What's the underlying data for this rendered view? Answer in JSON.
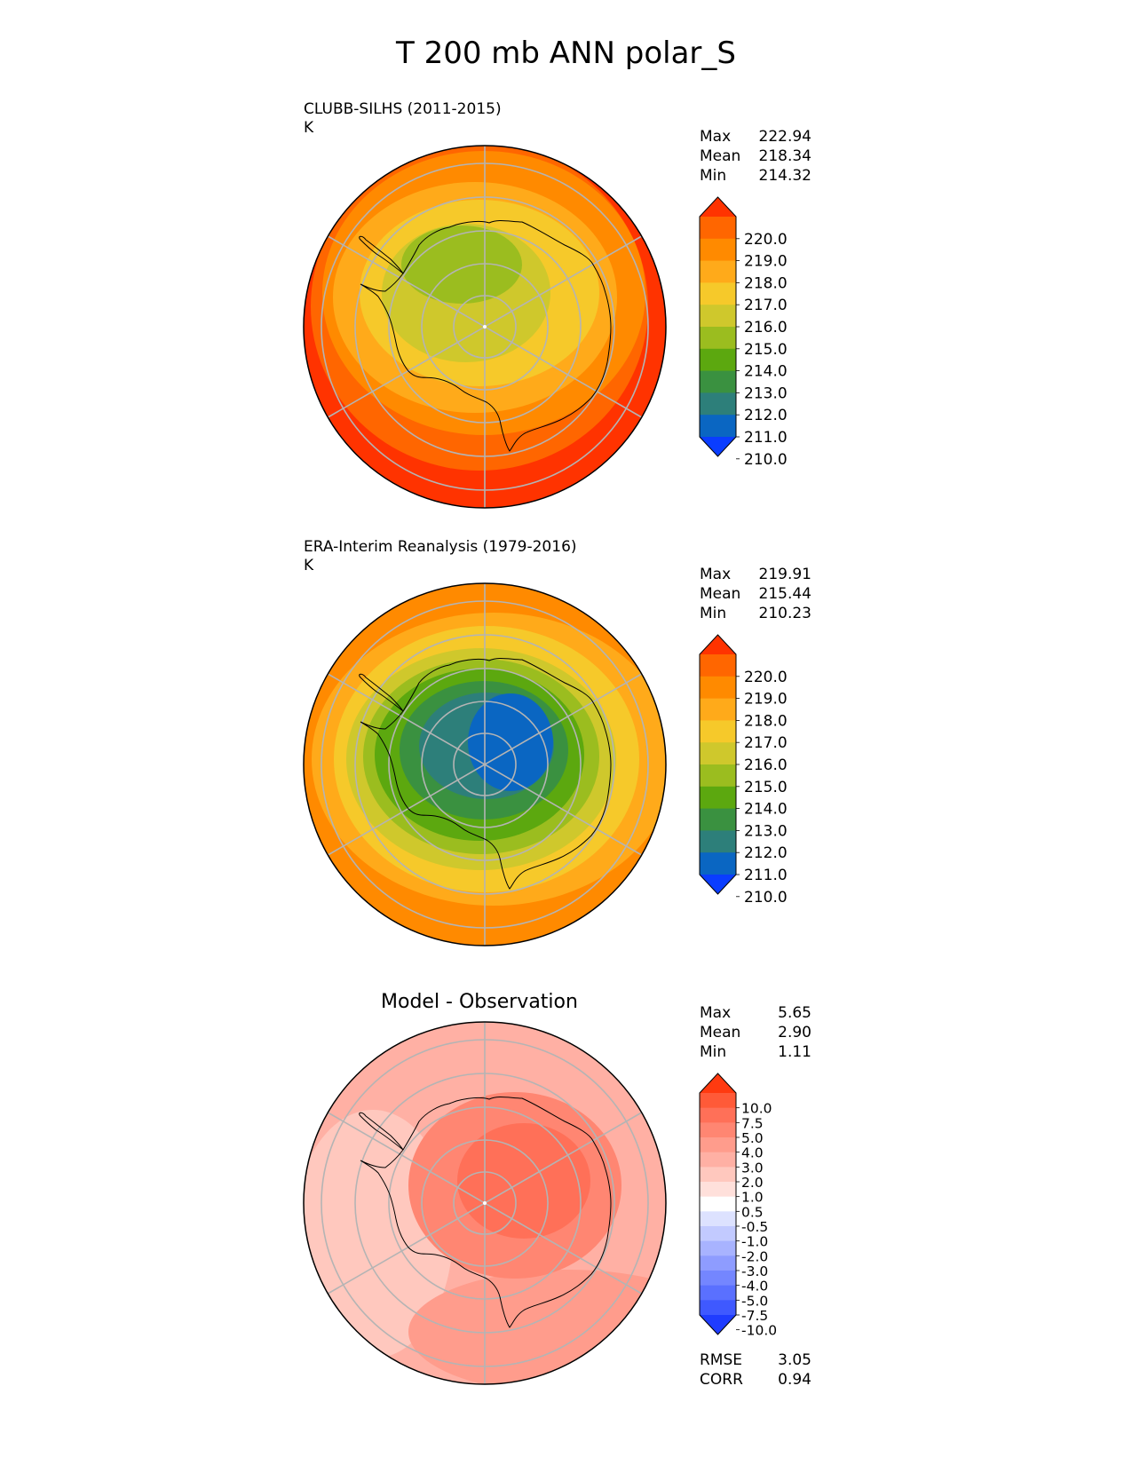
{
  "title": "T 200 mb ANN polar_S",
  "panels": [
    {
      "id": "test",
      "title": "CLUBB-SILHS (2011-2015)",
      "units": "K",
      "stats": [
        {
          "label": "Max",
          "value": "222.94"
        },
        {
          "label": "Mean",
          "value": "218.34"
        },
        {
          "label": "Min",
          "value": "214.32"
        }
      ]
    },
    {
      "id": "ref",
      "title": "ERA-Interim Reanalysis (1979-2016)",
      "units": "K",
      "stats": [
        {
          "label": "Max",
          "value": "219.91"
        },
        {
          "label": "Mean",
          "value": "215.44"
        },
        {
          "label": "Min",
          "value": "210.23"
        }
      ]
    },
    {
      "id": "diff",
      "title": "Model - Observation",
      "units": "",
      "stats": [
        {
          "label": "Max",
          "value": "5.65"
        },
        {
          "label": "Mean",
          "value": "2.90"
        },
        {
          "label": "Min",
          "value": "1.11"
        }
      ],
      "metrics": [
        {
          "label": "RMSE",
          "value": "3.05"
        },
        {
          "label": "CORR",
          "value": "0.94"
        }
      ]
    }
  ],
  "colorbars": {
    "abs": {
      "ticks": [
        "220.0",
        "219.0",
        "218.0",
        "217.0",
        "216.0",
        "215.0",
        "214.0",
        "213.0",
        "212.0",
        "211.0",
        "210.0"
      ],
      "colors_top_to_bottom": [
        "#ff3300",
        "#ff6600",
        "#ff8a00",
        "#ffaa1a",
        "#f6c92a",
        "#cfc82c",
        "#9bbd1f",
        "#5ca80f",
        "#3a9140",
        "#2d7f7a",
        "#0a66c2",
        "#0a3dff"
      ]
    },
    "diff": {
      "ticks": [
        "10.0",
        "7.5",
        "5.0",
        "4.0",
        "3.0",
        "2.0",
        "1.0",
        "0.5",
        "-0.5",
        "-1.0",
        "-2.0",
        "-3.0",
        "-4.0",
        "-5.0",
        "-7.5",
        "-10.0"
      ],
      "colors_top_to_bottom": [
        "#ff3a10",
        "#ff5a38",
        "#ff7058",
        "#ff8672",
        "#ff9c8c",
        "#ffb0a4",
        "#ffc8be",
        "#ffe0db",
        "#ffffff",
        "#dde2ff",
        "#c2caff",
        "#a8b3ff",
        "#8e9cff",
        "#7486ff",
        "#5a70ff",
        "#3f59ff",
        "#1f3cff"
      ]
    }
  },
  "chart_data": [
    {
      "type": "heatmap",
      "projection": "south-polar-stereographic",
      "title": "CLUBB-SILHS (2011-2015)",
      "units": "K",
      "variable": "T 200 mb ANN",
      "levels": [
        210,
        211,
        212,
        213,
        214,
        215,
        216,
        217,
        218,
        219,
        220
      ],
      "stats": {
        "max": 222.94,
        "mean": 218.34,
        "min": 214.32
      }
    },
    {
      "type": "heatmap",
      "projection": "south-polar-stereographic",
      "title": "ERA-Interim Reanalysis (1979-2016)",
      "units": "K",
      "variable": "T 200 mb ANN",
      "levels": [
        210,
        211,
        212,
        213,
        214,
        215,
        216,
        217,
        218,
        219,
        220
      ],
      "stats": {
        "max": 219.91,
        "mean": 215.44,
        "min": 210.23
      }
    },
    {
      "type": "heatmap",
      "projection": "south-polar-stereographic",
      "title": "Model - Observation",
      "levels": [
        -10,
        -7.5,
        -5,
        -4,
        -3,
        -2,
        -1,
        -0.5,
        0.5,
        1,
        2,
        3,
        4,
        5,
        7.5,
        10
      ],
      "stats": {
        "max": 5.65,
        "mean": 2.9,
        "min": 1.11,
        "rmse": 3.05,
        "corr": 0.94
      }
    }
  ]
}
